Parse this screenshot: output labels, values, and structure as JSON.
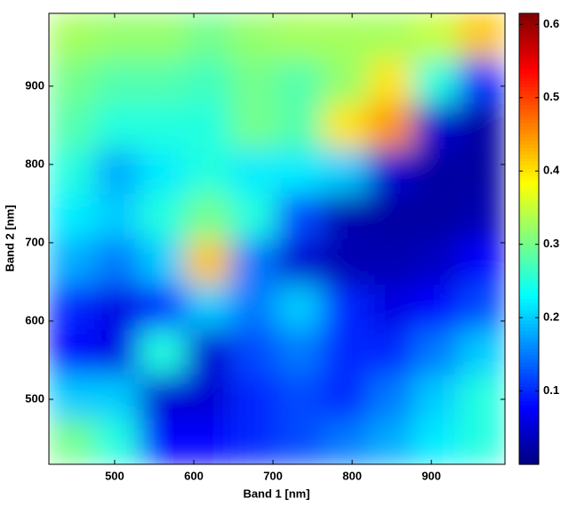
{
  "chart_data": {
    "type": "heatmap",
    "x_label": "Band 1 [nm]",
    "y_label": "Band 2 [nm]",
    "x_edges": [
      417,
      475,
      532,
      590,
      647,
      705,
      763,
      820,
      878,
      935,
      993
    ],
    "y_edges": [
      417,
      475,
      532,
      590,
      647,
      705,
      763,
      820,
      878,
      935,
      993
    ],
    "z": [
      [
        0.3,
        0.25,
        0.08,
        0.08,
        0.1,
        0.12,
        0.15,
        0.18,
        0.22,
        0.25
      ],
      [
        0.2,
        0.2,
        0.05,
        0.05,
        0.1,
        0.12,
        0.1,
        0.15,
        0.2,
        0.25
      ],
      [
        0.08,
        0.06,
        0.25,
        0.05,
        0.12,
        0.15,
        0.1,
        0.1,
        0.15,
        0.2
      ],
      [
        0.1,
        0.06,
        0.1,
        0.2,
        0.15,
        0.2,
        0.1,
        0.06,
        0.08,
        0.12
      ],
      [
        0.18,
        0.15,
        0.2,
        0.42,
        0.15,
        0.05,
        0.03,
        0.03,
        0.04,
        0.08
      ],
      [
        0.22,
        0.2,
        0.25,
        0.3,
        0.25,
        0.12,
        0.03,
        0.02,
        0.02,
        0.03
      ],
      [
        0.25,
        0.18,
        0.22,
        0.25,
        0.22,
        0.22,
        0.2,
        0.05,
        0.02,
        0.02
      ],
      [
        0.28,
        0.25,
        0.25,
        0.25,
        0.3,
        0.28,
        0.4,
        0.45,
        0.05,
        0.02
      ],
      [
        0.3,
        0.28,
        0.28,
        0.27,
        0.3,
        0.28,
        0.32,
        0.4,
        0.25,
        0.1
      ],
      [
        0.33,
        0.32,
        0.32,
        0.3,
        0.32,
        0.33,
        0.33,
        0.33,
        0.35,
        0.42
      ]
    ],
    "xlim": [
      417,
      993
    ],
    "ylim": [
      417,
      993
    ],
    "xticks": [
      500,
      600,
      700,
      800,
      900
    ],
    "yticks": [
      500,
      600,
      700,
      800,
      900
    ],
    "zlim": [
      0,
      0.615
    ],
    "zticks": [
      0.1,
      0.2,
      0.3,
      0.4,
      0.5,
      0.6
    ],
    "colormap": "jet"
  }
}
